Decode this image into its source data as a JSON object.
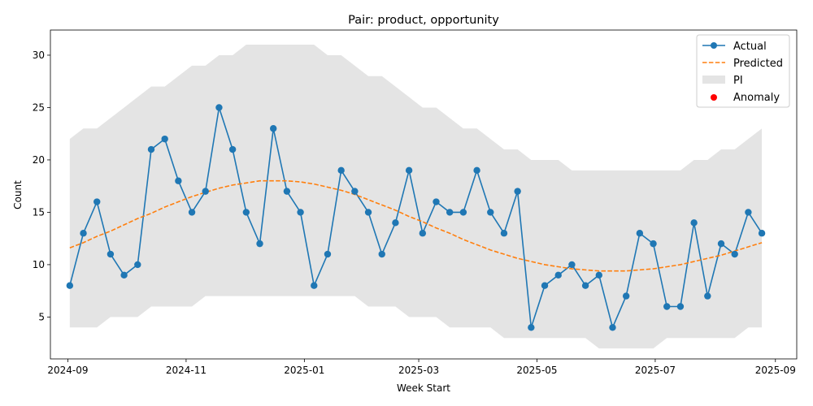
{
  "chart_data": {
    "type": "line",
    "title": "Pair: product, opportunity",
    "xlabel": "Week Start",
    "ylabel": "Count",
    "x_ticks": [
      "2024-09",
      "2024-11",
      "2025-01",
      "2025-03",
      "2025-05",
      "2025-07",
      "2025-09"
    ],
    "y_ticks": [
      5,
      10,
      15,
      20,
      25,
      30
    ],
    "xlim": [
      "2024-08-23",
      "2025-09-12"
    ],
    "ylim": [
      1.0,
      32.4
    ],
    "grid": false,
    "legend_position": "upper right",
    "x": [
      "2024-09-02",
      "2024-09-09",
      "2024-09-16",
      "2024-09-23",
      "2024-09-30",
      "2024-10-07",
      "2024-10-14",
      "2024-10-21",
      "2024-10-28",
      "2024-11-04",
      "2024-11-11",
      "2024-11-18",
      "2024-11-25",
      "2024-12-02",
      "2024-12-09",
      "2024-12-16",
      "2024-12-23",
      "2024-12-30",
      "2025-01-06",
      "2025-01-13",
      "2025-01-20",
      "2025-01-27",
      "2025-02-03",
      "2025-02-10",
      "2025-02-17",
      "2025-02-24",
      "2025-03-03",
      "2025-03-10",
      "2025-03-17",
      "2025-03-24",
      "2025-03-31",
      "2025-04-07",
      "2025-04-14",
      "2025-04-21",
      "2025-04-28",
      "2025-05-05",
      "2025-05-12",
      "2025-05-19",
      "2025-05-26",
      "2025-06-02",
      "2025-06-09",
      "2025-06-16",
      "2025-06-23",
      "2025-06-30",
      "2025-07-07",
      "2025-07-14",
      "2025-07-21",
      "2025-07-28",
      "2025-08-04",
      "2025-08-11",
      "2025-08-18",
      "2025-08-25"
    ],
    "series": [
      {
        "name": "Actual",
        "style": "solid line with circle markers",
        "color": "#1f77b4",
        "values": [
          8,
          13,
          16,
          11,
          9,
          10,
          21,
          22,
          18,
          15,
          17,
          25,
          21,
          15,
          12,
          23,
          17,
          15,
          8,
          11,
          19,
          17,
          15,
          11,
          14,
          19,
          13,
          16,
          15,
          15,
          19,
          15,
          13,
          17,
          4,
          8,
          9,
          10,
          8,
          9,
          4,
          7,
          13,
          12,
          6,
          6,
          14,
          7,
          12,
          11,
          15,
          13
        ]
      },
      {
        "name": "Predicted",
        "style": "dashed line",
        "color": "#ff7f0e",
        "values": [
          11.6,
          12.1,
          12.7,
          13.2,
          13.8,
          14.4,
          14.9,
          15.5,
          16.0,
          16.5,
          16.9,
          17.3,
          17.6,
          17.8,
          18.0,
          18.0,
          18.0,
          17.9,
          17.7,
          17.4,
          17.1,
          16.7,
          16.2,
          15.7,
          15.2,
          14.6,
          14.1,
          13.5,
          13.0,
          12.4,
          11.9,
          11.4,
          11.0,
          10.6,
          10.3,
          10.0,
          9.8,
          9.6,
          9.5,
          9.4,
          9.4,
          9.4,
          9.5,
          9.6,
          9.8,
          10.0,
          10.3,
          10.6,
          10.9,
          11.3,
          11.7,
          12.1
        ]
      }
    ],
    "pi": {
      "name": "PI",
      "color": "#e4e4e4",
      "lower": [
        4,
        4,
        4,
        5,
        5,
        5,
        6,
        6,
        6,
        6,
        7,
        7,
        7,
        7,
        7,
        7,
        7,
        7,
        7,
        7,
        7,
        7,
        6,
        6,
        6,
        5,
        5,
        5,
        4,
        4,
        4,
        4,
        3,
        3,
        3,
        3,
        3,
        3,
        3,
        2,
        2,
        2,
        2,
        2,
        3,
        3,
        3,
        3,
        3,
        3,
        4,
        4
      ],
      "upper": [
        22,
        23,
        23,
        24,
        25,
        26,
        27,
        27,
        28,
        29,
        29,
        30,
        30,
        31,
        31,
        31,
        31,
        31,
        31,
        30,
        30,
        29,
        28,
        28,
        27,
        26,
        25,
        25,
        24,
        23,
        23,
        22,
        21,
        21,
        20,
        20,
        20,
        19,
        19,
        19,
        19,
        19,
        19,
        19,
        19,
        19,
        20,
        20,
        21,
        21,
        22,
        23
      ]
    },
    "anomaly": {
      "name": "Anomaly",
      "color": "#ff0000",
      "points": []
    }
  }
}
